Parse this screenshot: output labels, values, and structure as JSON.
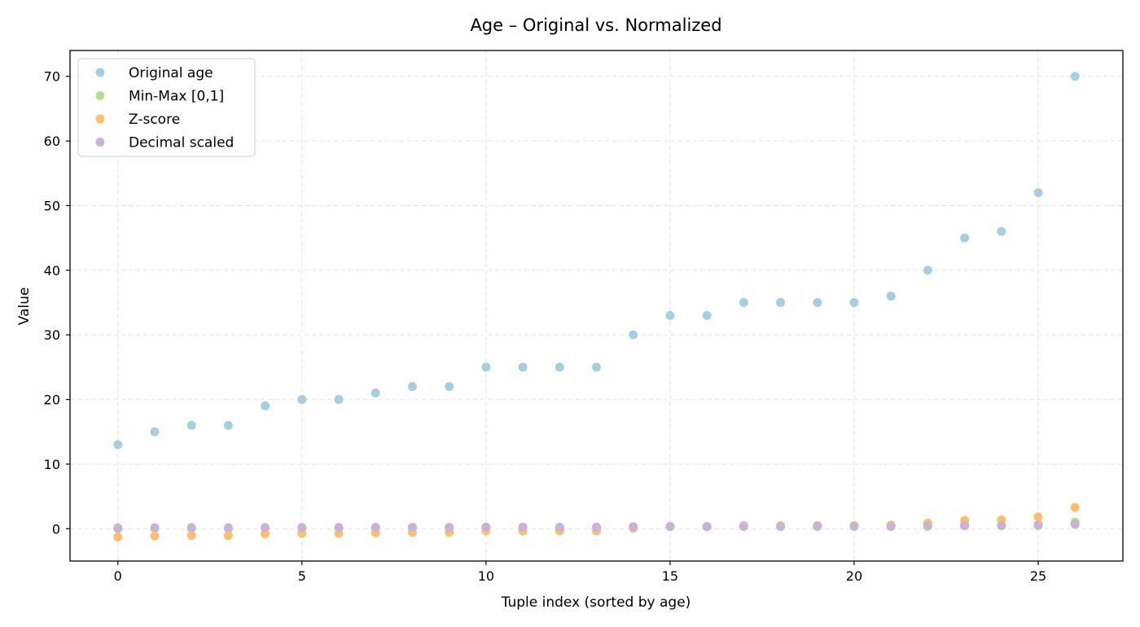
{
  "chart_data": {
    "type": "scatter",
    "title": "Age – Original vs. Normalized",
    "xlabel": "Tuple index (sorted by age)",
    "ylabel": "Value",
    "xlim": [
      -1.3,
      27.3
    ],
    "ylim": [
      -5,
      74
    ],
    "xticks": [
      0,
      5,
      10,
      15,
      20,
      25
    ],
    "yticks": [
      0,
      10,
      20,
      30,
      40,
      50,
      60,
      70
    ],
    "grid": true,
    "legend_position": "top-left",
    "x": [
      0,
      1,
      2,
      3,
      4,
      5,
      6,
      7,
      8,
      9,
      10,
      11,
      12,
      13,
      14,
      15,
      16,
      17,
      18,
      19,
      20,
      21,
      22,
      23,
      24,
      25,
      26
    ],
    "series": [
      {
        "name": "Original age",
        "color": "#a6cee3",
        "values": [
          13,
          15,
          16,
          16,
          19,
          20,
          20,
          21,
          22,
          22,
          25,
          25,
          25,
          25,
          30,
          33,
          33,
          35,
          35,
          35,
          35,
          36,
          40,
          45,
          46,
          52,
          70
        ]
      },
      {
        "name": "Min-Max [0,1]",
        "color": "#b2df8a",
        "values": [
          0.0,
          0.035,
          0.053,
          0.053,
          0.105,
          0.123,
          0.123,
          0.14,
          0.158,
          0.158,
          0.211,
          0.211,
          0.211,
          0.211,
          0.298,
          0.351,
          0.351,
          0.386,
          0.386,
          0.386,
          0.386,
          0.404,
          0.474,
          0.561,
          0.579,
          0.684,
          1.0
        ]
      },
      {
        "name": "Z-score",
        "color": "#fdbf6f",
        "values": [
          -1.28,
          -1.12,
          -1.04,
          -1.04,
          -0.8,
          -0.72,
          -0.72,
          -0.64,
          -0.56,
          -0.56,
          -0.32,
          -0.32,
          -0.32,
          -0.32,
          0.08,
          0.32,
          0.32,
          0.48,
          0.48,
          0.48,
          0.48,
          0.56,
          0.88,
          1.28,
          1.36,
          1.84,
          3.28
        ]
      },
      {
        "name": "Decimal scaled",
        "color": "#cab2d6",
        "values": [
          0.13,
          0.15,
          0.16,
          0.16,
          0.19,
          0.2,
          0.2,
          0.21,
          0.22,
          0.22,
          0.25,
          0.25,
          0.25,
          0.25,
          0.3,
          0.33,
          0.33,
          0.35,
          0.35,
          0.35,
          0.35,
          0.36,
          0.4,
          0.45,
          0.46,
          0.52,
          0.7
        ]
      }
    ]
  }
}
